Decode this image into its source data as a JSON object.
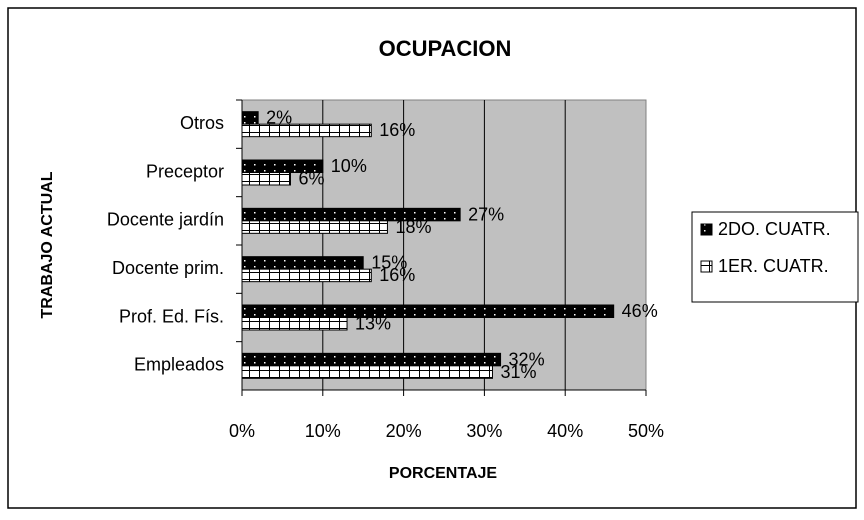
{
  "chart_data": {
    "type": "hbar",
    "title": "OCUPACION",
    "x_label": "PORCENTAJE",
    "y_label": "TRABAJO ACTUAL",
    "categories": [
      "Otros",
      "Preceptor",
      "Docente jardín",
      "Docente prim.",
      "Prof. Ed. Fís.",
      "Empleados"
    ],
    "series": [
      {
        "name": "2DO. CUATR.",
        "color": "#000000",
        "values": [
          2,
          10,
          27,
          15,
          46,
          32
        ],
        "value_labels": [
          "2%",
          "10%",
          "27%",
          "15%",
          "46%",
          "32%"
        ]
      },
      {
        "name": "1ER. CUATR.",
        "color": "#ffffff",
        "values": [
          16,
          6,
          18,
          16,
          13,
          31
        ],
        "value_labels": [
          "16%",
          "6%",
          "18%",
          "16%",
          "13%",
          "31%"
        ]
      }
    ],
    "xlim": [
      0,
      50
    ],
    "xticks": [
      {
        "value": 0,
        "label": "0%"
      },
      {
        "value": 10,
        "label": "10%"
      },
      {
        "value": 20,
        "label": "20%"
      },
      {
        "value": 30,
        "label": "30%"
      },
      {
        "value": 40,
        "label": "40%"
      },
      {
        "value": 50,
        "label": "50%"
      }
    ],
    "grid": true,
    "legend": "right"
  }
}
